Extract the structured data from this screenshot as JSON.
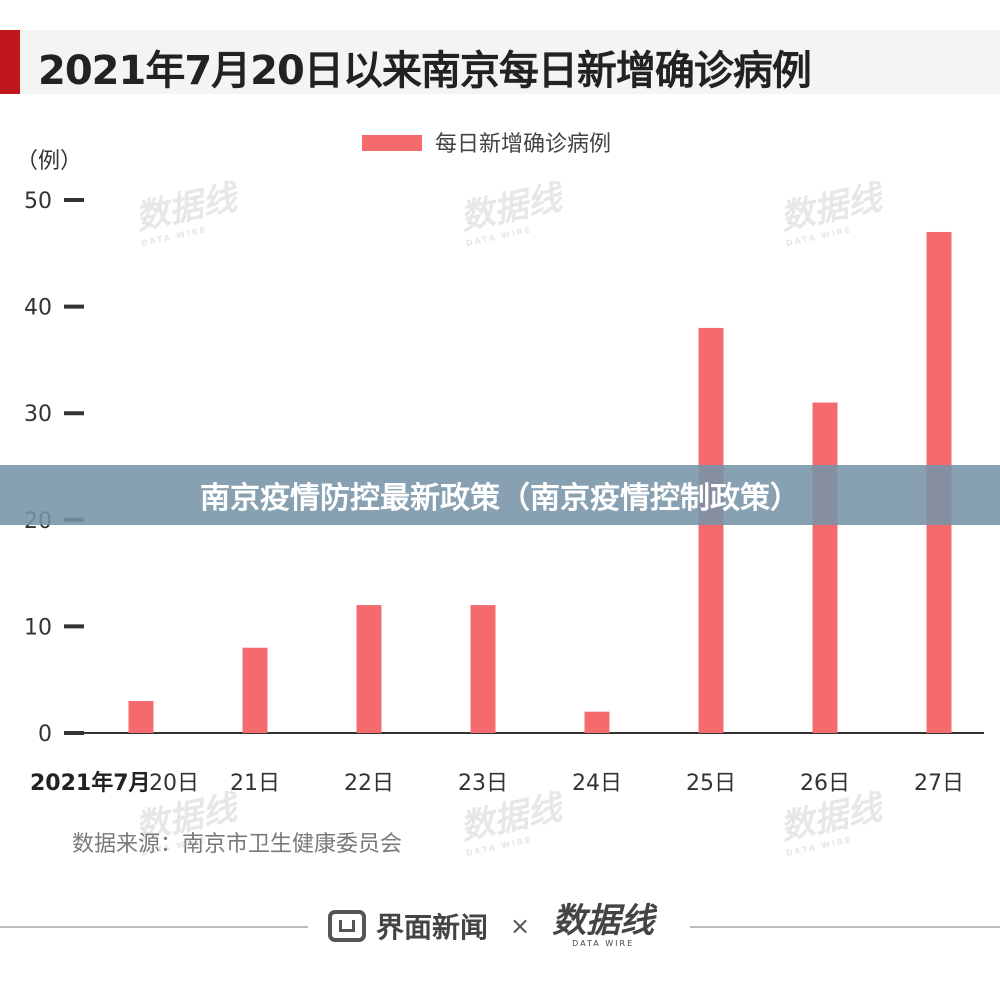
{
  "header": {
    "title": "2021年7月20日以来南京每日新增确诊病例"
  },
  "banner": {
    "text": "南京疫情防控最新政策（南京疫情控制政策）"
  },
  "source": {
    "text": "数据来源：南京市卫生健康委员会"
  },
  "footer": {
    "partner_a": "界面新闻",
    "separator": "×",
    "partner_b": "数据线",
    "partner_b_sub": "DATA WIRE"
  },
  "watermark": {
    "text": "数据线",
    "sub": "DATA WIRE"
  },
  "colors": {
    "bar": "#f46a6d",
    "accent": "#c0161e",
    "banner": "#7694a8"
  },
  "chart_data": {
    "type": "bar",
    "title": "2021年7月20日以来南京每日新增确诊病例",
    "ylabel": "（例）",
    "xlabel_prefix": "2021年7月",
    "categories": [
      "20日",
      "21日",
      "22日",
      "23日",
      "24日",
      "25日",
      "26日",
      "27日"
    ],
    "series": [
      {
        "name": "每日新增确诊病例",
        "values": [
          3,
          8,
          12,
          12,
          2,
          38,
          31,
          47
        ]
      }
    ],
    "ylim": [
      0,
      50
    ],
    "yticks": [
      0,
      10,
      20,
      30,
      40,
      50
    ],
    "legend": "top-center",
    "grid": false
  }
}
